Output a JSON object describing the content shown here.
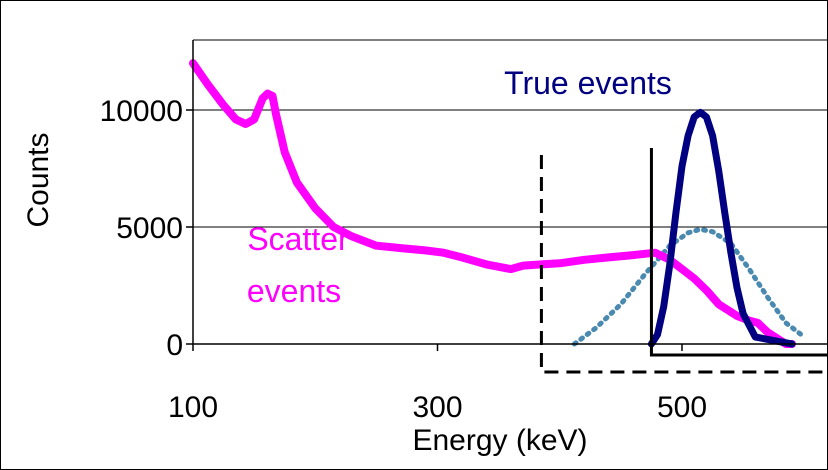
{
  "chart_data": {
    "type": "line",
    "xlabel": "Energy (keV)",
    "ylabel": "Counts",
    "xlim": [
      100,
      600
    ],
    "ylim": [
      0,
      12000
    ],
    "x_ticks": [
      100,
      300,
      500
    ],
    "y_ticks": [
      0,
      5000,
      10000
    ],
    "x_tick_labels": [
      "100",
      "300",
      "500"
    ],
    "y_tick_labels": [
      "0",
      "5000",
      "10000"
    ],
    "grid": "horizontal",
    "annotations": [
      {
        "text": "True events",
        "color": "#000080"
      },
      {
        "text": "Scatter",
        "color": "#ff00ff"
      },
      {
        "text": "events",
        "color": "#ff00ff"
      }
    ],
    "series": [
      {
        "color": "#ff00ff",
        "style": "solid",
        "x": [
          100,
          112,
          125,
          135,
          143,
          150,
          157,
          161,
          165,
          168,
          175,
          185,
          200,
          215,
          230,
          250,
          270,
          290,
          305,
          320,
          340,
          360,
          370,
          385,
          400,
          420,
          440,
          460,
          478,
          490,
          500,
          510,
          520,
          530,
          545,
          555,
          562,
          570,
          585,
          590
        ],
        "y": [
          12000,
          11100,
          10200,
          9600,
          9400,
          9600,
          10500,
          10700,
          10600,
          9800,
          8200,
          6900,
          5800,
          5000,
          4600,
          4200,
          4100,
          4000,
          3900,
          3700,
          3400,
          3200,
          3350,
          3400,
          3450,
          3600,
          3700,
          3800,
          3900,
          3600,
          3200,
          2800,
          2300,
          1700,
          1200,
          1000,
          900,
          500,
          0,
          0
        ]
      },
      {
        "color": "#000080",
        "style": "solid",
        "x": [
          475,
          480,
          485,
          490,
          495,
          500,
          505,
          510,
          515,
          520,
          525,
          530,
          535,
          540,
          545,
          550,
          560,
          590
        ],
        "y": [
          0,
          400,
          1600,
          3400,
          5600,
          7600,
          8900,
          9700,
          9900,
          9700,
          8900,
          7400,
          5600,
          3900,
          2400,
          1300,
          300,
          0
        ]
      },
      {
        "color": "#4a8ab0",
        "style": "dotted",
        "x": [
          412,
          430,
          450,
          470,
          490,
          505,
          515,
          525,
          540,
          555,
          570,
          585,
          600
        ],
        "y": [
          0,
          700,
          1700,
          3000,
          4200,
          4750,
          4900,
          4800,
          4300,
          3200,
          2000,
          900,
          300
        ]
      }
    ],
    "threshold_lines": [
      {
        "x": 385,
        "style": "dashed"
      },
      {
        "x": 475,
        "style": "solid"
      }
    ]
  }
}
